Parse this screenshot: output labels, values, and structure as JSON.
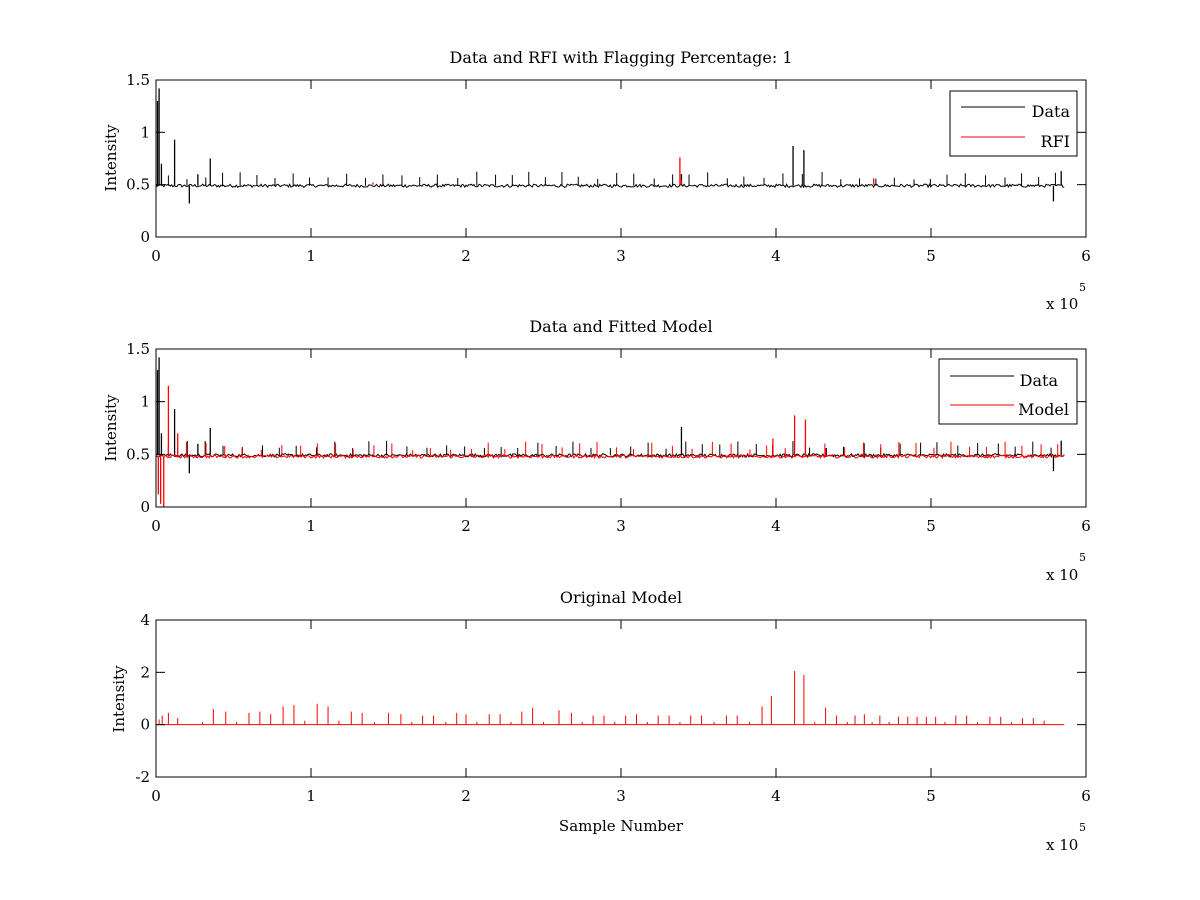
{
  "chart_data": [
    {
      "type": "line",
      "title": "Data and RFI with Flagging Percentage: 1",
      "xlabel": "",
      "ylabel": "Intensity",
      "xlim": [
        0,
        600000
      ],
      "ylim": [
        0,
        1.5
      ],
      "xticks": [
        "0",
        "1",
        "2",
        "3",
        "4",
        "5",
        "6"
      ],
      "yticks": [
        "0",
        "0.5",
        "1",
        "1.5"
      ],
      "x_exponent_base": "x 10",
      "x_exponent_power": "5",
      "legend_position": "top-right",
      "grid": false,
      "series": [
        {
          "name": "Data",
          "color": "#000000",
          "baseline": 0.49,
          "x_range": [
            0,
            586000
          ],
          "features": [
            {
              "x": 1000,
              "y": 1.3
            },
            {
              "x": 2000,
              "y": 1.42
            },
            {
              "x": 3500,
              "y": 0.7
            },
            {
              "x": 12000,
              "y": 0.93
            },
            {
              "x": 21500,
              "y": 0.32
            },
            {
              "x": 27000,
              "y": 0.6
            },
            {
              "x": 35000,
              "y": 0.75
            },
            {
              "x": 339000,
              "y": 0.6
            },
            {
              "x": 411000,
              "y": 0.87
            },
            {
              "x": 418000,
              "y": 0.83
            },
            {
              "x": 579000,
              "y": 0.34
            },
            {
              "x": 584000,
              "y": 0.63
            }
          ]
        },
        {
          "name": "RFI",
          "color": "#ff0000",
          "features": [
            {
              "x": 338000,
              "y": 0.76
            },
            {
              "x": 339000,
              "y": 0.55
            },
            {
              "x": 463000,
              "y": 0.56
            },
            {
              "x": 140000,
              "y": 0.52
            }
          ]
        }
      ]
    },
    {
      "type": "line",
      "title": "Data and Fitted Model",
      "xlabel": "",
      "ylabel": "Intensity",
      "xlim": [
        0,
        600000
      ],
      "ylim": [
        0,
        1.5
      ],
      "xticks": [
        "0",
        "1",
        "2",
        "3",
        "4",
        "5",
        "6"
      ],
      "yticks": [
        "0",
        "0.5",
        "1",
        "1.5"
      ],
      "x_exponent_base": "x 10",
      "x_exponent_power": "5",
      "legend_position": "top-right",
      "grid": false,
      "series": [
        {
          "name": "Data",
          "color": "#000000",
          "baseline": 0.49,
          "x_range": [
            0,
            586000
          ],
          "features": [
            {
              "x": 1000,
              "y": 1.3
            },
            {
              "x": 2000,
              "y": 1.42
            },
            {
              "x": 3500,
              "y": 0.7
            },
            {
              "x": 12000,
              "y": 0.93
            },
            {
              "x": 21500,
              "y": 0.32
            },
            {
              "x": 27000,
              "y": 0.6
            },
            {
              "x": 35000,
              "y": 0.75
            },
            {
              "x": 339000,
              "y": 0.76
            },
            {
              "x": 579000,
              "y": 0.34
            },
            {
              "x": 584000,
              "y": 0.63
            }
          ]
        },
        {
          "name": "Model",
          "color": "#ff0000",
          "baseline": 0.48,
          "x_range": [
            0,
            586000
          ],
          "features": [
            {
              "x": 1500,
              "y": 0.12
            },
            {
              "x": 3000,
              "y": 0.03
            },
            {
              "x": 5000,
              "y": 0.0
            },
            {
              "x": 8000,
              "y": 1.15
            },
            {
              "x": 14000,
              "y": 0.7
            },
            {
              "x": 398000,
              "y": 0.65
            },
            {
              "x": 412000,
              "y": 0.87
            },
            {
              "x": 419000,
              "y": 0.83
            },
            {
              "x": 432000,
              "y": 0.56
            }
          ]
        }
      ]
    },
    {
      "type": "line",
      "title": "Original Model",
      "xlabel": "Sample Number",
      "ylabel": "Intensity",
      "xlim": [
        0,
        600000
      ],
      "ylim": [
        -2,
        4
      ],
      "xticks": [
        "0",
        "1",
        "2",
        "3",
        "4",
        "5",
        "6"
      ],
      "yticks": [
        "-2",
        "0",
        "2",
        "4"
      ],
      "x_exponent_base": "x 10",
      "x_exponent_power": "5",
      "grid": false,
      "series": [
        {
          "color": "#ff0000",
          "baseline": 0.0,
          "x_range": [
            0,
            586000
          ],
          "spikes": [
            {
              "x": 2000,
              "y": 0.2
            },
            {
              "x": 4000,
              "y": 0.35
            },
            {
              "x": 8000,
              "y": 0.45
            },
            {
              "x": 14000,
              "y": 0.25
            },
            {
              "x": 30000,
              "y": 0.1
            },
            {
              "x": 37000,
              "y": 0.6
            },
            {
              "x": 45000,
              "y": 0.5
            },
            {
              "x": 52000,
              "y": 0.1
            },
            {
              "x": 60000,
              "y": 0.45
            },
            {
              "x": 67000,
              "y": 0.5
            },
            {
              "x": 74000,
              "y": 0.4
            },
            {
              "x": 82000,
              "y": 0.7
            },
            {
              "x": 89000,
              "y": 0.75
            },
            {
              "x": 96000,
              "y": 0.15
            },
            {
              "x": 104000,
              "y": 0.8
            },
            {
              "x": 111000,
              "y": 0.7
            },
            {
              "x": 118000,
              "y": 0.15
            },
            {
              "x": 126000,
              "y": 0.5
            },
            {
              "x": 133000,
              "y": 0.45
            },
            {
              "x": 141000,
              "y": 0.1
            },
            {
              "x": 150000,
              "y": 0.45
            },
            {
              "x": 158000,
              "y": 0.4
            },
            {
              "x": 165000,
              "y": 0.1
            },
            {
              "x": 172000,
              "y": 0.35
            },
            {
              "x": 179000,
              "y": 0.35
            },
            {
              "x": 187000,
              "y": 0.1
            },
            {
              "x": 194000,
              "y": 0.45
            },
            {
              "x": 200000,
              "y": 0.4
            },
            {
              "x": 207000,
              "y": 0.1
            },
            {
              "x": 215000,
              "y": 0.4
            },
            {
              "x": 222000,
              "y": 0.4
            },
            {
              "x": 229000,
              "y": 0.1
            },
            {
              "x": 236000,
              "y": 0.5
            },
            {
              "x": 243000,
              "y": 0.65
            },
            {
              "x": 250000,
              "y": 0.1
            },
            {
              "x": 260000,
              "y": 0.55
            },
            {
              "x": 268000,
              "y": 0.45
            },
            {
              "x": 275000,
              "y": 0.1
            },
            {
              "x": 282000,
              "y": 0.35
            },
            {
              "x": 289000,
              "y": 0.35
            },
            {
              "x": 296000,
              "y": 0.1
            },
            {
              "x": 303000,
              "y": 0.35
            },
            {
              "x": 310000,
              "y": 0.4
            },
            {
              "x": 317000,
              "y": 0.1
            },
            {
              "x": 324000,
              "y": 0.35
            },
            {
              "x": 331000,
              "y": 0.35
            },
            {
              "x": 338000,
              "y": 0.1
            },
            {
              "x": 345000,
              "y": 0.35
            },
            {
              "x": 352000,
              "y": 0.35
            },
            {
              "x": 360000,
              "y": 0.1
            },
            {
              "x": 368000,
              "y": 0.35
            },
            {
              "x": 375000,
              "y": 0.35
            },
            {
              "x": 383000,
              "y": 0.1
            },
            {
              "x": 391000,
              "y": 0.7
            },
            {
              "x": 397000,
              "y": 1.1
            },
            {
              "x": 412000,
              "y": 2.05
            },
            {
              "x": 418000,
              "y": 1.9
            },
            {
              "x": 425000,
              "y": 0.1
            },
            {
              "x": 432000,
              "y": 0.65
            },
            {
              "x": 439000,
              "y": 0.35
            },
            {
              "x": 446000,
              "y": 0.1
            },
            {
              "x": 451000,
              "y": 0.35
            },
            {
              "x": 457000,
              "y": 0.4
            },
            {
              "x": 462000,
              "y": 0.1
            },
            {
              "x": 467000,
              "y": 0.35
            },
            {
              "x": 473000,
              "y": 0.1
            },
            {
              "x": 479000,
              "y": 0.3
            },
            {
              "x": 485000,
              "y": 0.3
            },
            {
              "x": 491000,
              "y": 0.3
            },
            {
              "x": 497000,
              "y": 0.3
            },
            {
              "x": 503000,
              "y": 0.3
            },
            {
              "x": 509000,
              "y": 0.1
            },
            {
              "x": 516000,
              "y": 0.35
            },
            {
              "x": 523000,
              "y": 0.35
            },
            {
              "x": 530000,
              "y": 0.1
            },
            {
              "x": 538000,
              "y": 0.3
            },
            {
              "x": 545000,
              "y": 0.3
            },
            {
              "x": 552000,
              "y": 0.1
            },
            {
              "x": 559000,
              "y": 0.25
            },
            {
              "x": 566000,
              "y": 0.25
            },
            {
              "x": 573000,
              "y": 0.15
            }
          ]
        }
      ]
    }
  ]
}
